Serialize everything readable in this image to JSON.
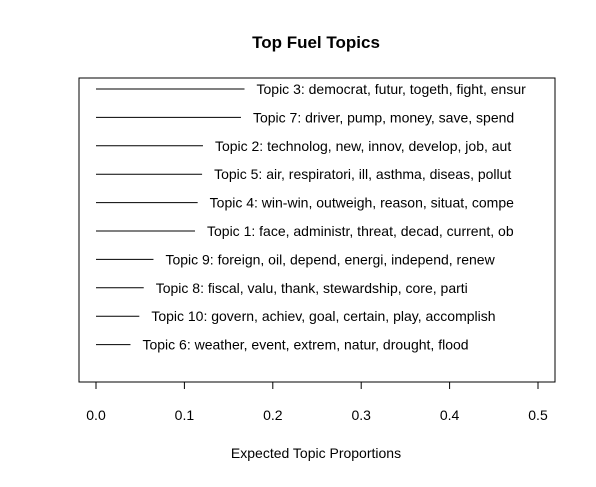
{
  "chart_data": {
    "type": "bar",
    "orientation": "horizontal",
    "title": "Top Fuel Topics",
    "xlabel": "Expected Topic Proportions",
    "ylabel": "",
    "xlim": [
      0,
      0.52
    ],
    "xticks": [
      0.0,
      0.1,
      0.2,
      0.3,
      0.4,
      0.5
    ],
    "xtick_labels": [
      "0.0",
      "0.1",
      "0.2",
      "0.3",
      "0.4",
      "0.5"
    ],
    "grid": false,
    "legend": "none",
    "series_color": "#000000",
    "categories": [
      "Topic 3: democrat, futur, togeth, fight, ensur",
      "Topic 7: driver, pump, money, save, spend",
      "Topic 2: technolog, new, innov, develop, job, aut",
      "Topic 5: air, respiratori, ill, asthma, diseas, pollut",
      "Topic 4: win-win, outweigh, reason, situat, compe",
      "Topic 1: face, administr, threat, decad, current, ob",
      "Topic 9: foreign, oil, depend, energi, independ, renew",
      "Topic 8: fiscal, valu, thank, stewardship, core, parti",
      "Topic 10: govern, achiev, goal, certain, play, accomplish",
      "Topic 6: weather, event, extrem, natur, drought, flood"
    ],
    "values": [
      0.168,
      0.164,
      0.121,
      0.12,
      0.115,
      0.112,
      0.065,
      0.054,
      0.049,
      0.039
    ]
  }
}
